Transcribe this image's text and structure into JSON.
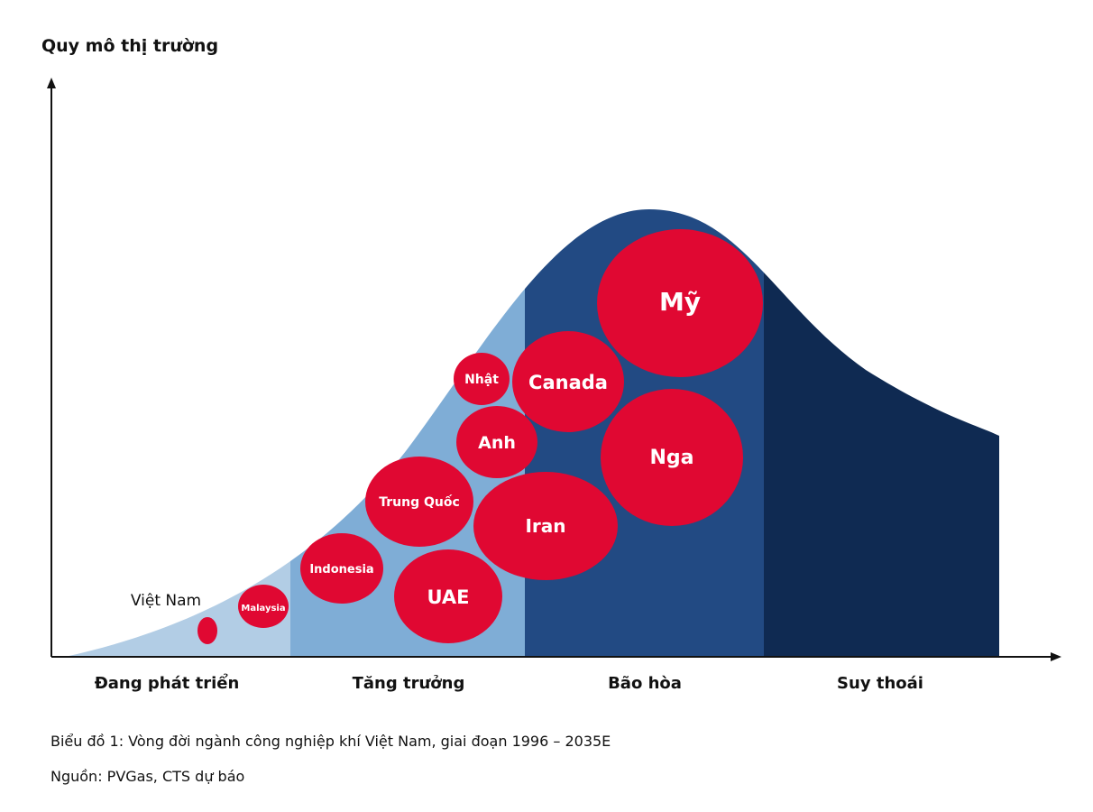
{
  "y_axis_label": "Quy mô thị trường",
  "stages": [
    {
      "label": "Đang phát triển",
      "color": "#b2cde5"
    },
    {
      "label": "Tăng trưởng",
      "color": "#7fadd6"
    },
    {
      "label": "Bão hòa",
      "color": "#224a83"
    },
    {
      "label": "Suy thoái",
      "color": "#0f2a52"
    }
  ],
  "countries": [
    {
      "label": "Mỹ"
    },
    {
      "label": "Canada"
    },
    {
      "label": "Nga"
    },
    {
      "label": "Nhật"
    },
    {
      "label": "Anh"
    },
    {
      "label": "Trung Quốc"
    },
    {
      "label": "Iran"
    },
    {
      "label": "Indonesia"
    },
    {
      "label": "UAE"
    },
    {
      "label": "Malaysia"
    },
    {
      "label": "Việt Nam"
    }
  ],
  "bubble_color": "#e00832",
  "caption": "Biểu đồ 1: Vòng đời ngành công nghiệp khí Việt Nam, giai đoạn 1996 – 2035E",
  "source": "Nguồn: PVGas, CTS dự báo"
}
